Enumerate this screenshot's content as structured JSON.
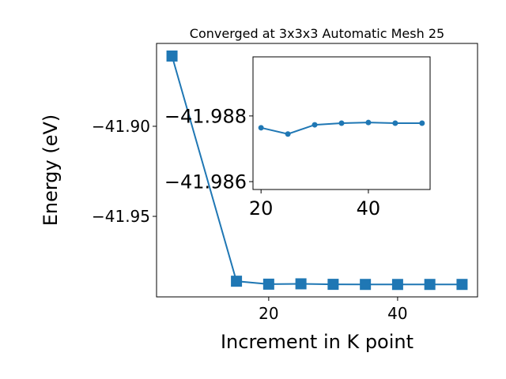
{
  "chart_data": [
    {
      "type": "line",
      "title": "Converged at 3x3x3 Automatic Mesh 25",
      "x_label": "Increment in K point",
      "y_label": "Energy (eV)",
      "x": [
        5,
        15,
        20,
        25,
        30,
        35,
        40,
        45,
        50
      ],
      "series": [
        {
          "name": "energy",
          "color": "#1f77b4",
          "marker": "square",
          "values": [
            -41.861,
            -41.986,
            -41.98764,
            -41.98745,
            -41.98773,
            -41.98778,
            -41.9878,
            -41.98778,
            -41.98778
          ]
        }
      ],
      "xlim": [
        2.6,
        52.4
      ],
      "xticks": [
        20,
        40
      ],
      "ylim": [
        -41.9947,
        -41.854
      ],
      "yticks": [
        {
          "value": -41.95,
          "label": "−41.95"
        },
        {
          "value": -41.9,
          "label": "−41.90"
        }
      ]
    },
    {
      "type": "line",
      "x": [
        20,
        25,
        30,
        35,
        40,
        45,
        50
      ],
      "series": [
        {
          "name": "inset",
          "color": "#1f77b4",
          "marker": "circle",
          "values": [
            -41.98764,
            -41.98745,
            -41.98773,
            -41.98778,
            -41.9878,
            -41.98778,
            -41.98778
          ]
        }
      ],
      "xlim": [
        18.5,
        51.5
      ],
      "xticks": [
        20,
        40
      ],
      "ylim": [
        -41.98576,
        -41.9898
      ],
      "yticks": [
        {
          "value": -41.986,
          "label": "−41.986"
        },
        {
          "value": -41.988,
          "label": "−41.988"
        }
      ]
    }
  ]
}
